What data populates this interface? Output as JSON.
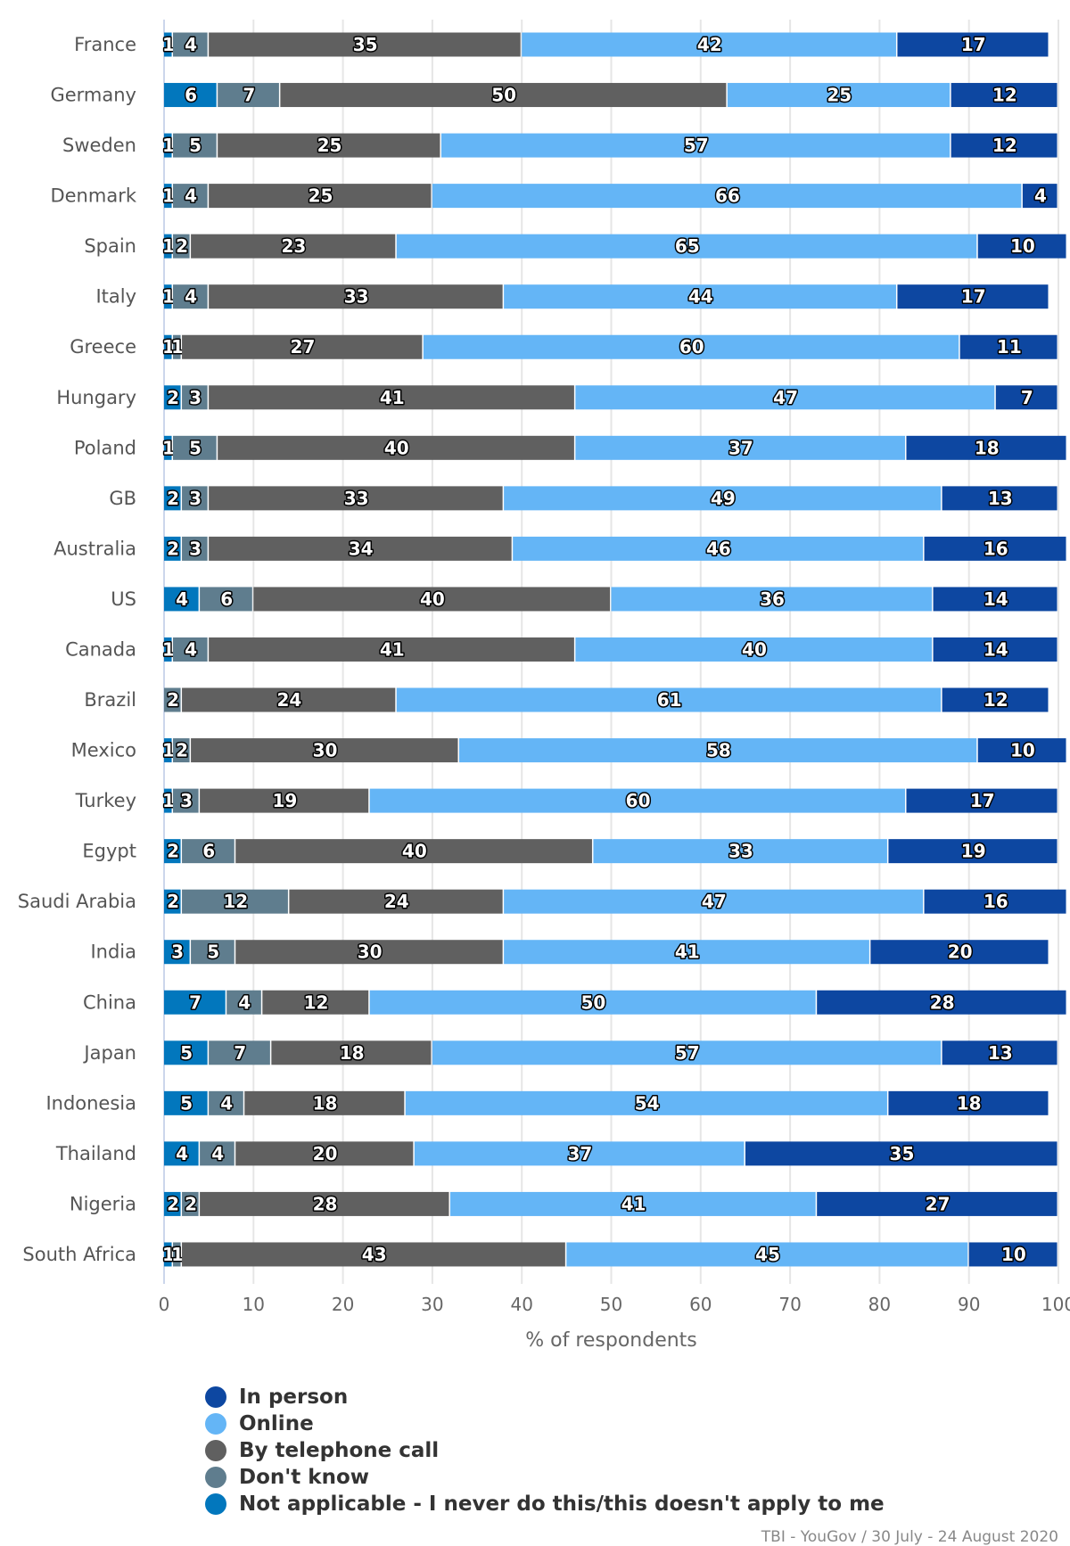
{
  "chart_data": {
    "type": "bar",
    "orientation": "horizontal",
    "stacked": "percent",
    "categories": [
      "France",
      "Germany",
      "Sweden",
      "Denmark",
      "Spain",
      "Italy",
      "Greece",
      "Hungary",
      "Poland",
      "GB",
      "Australia",
      "US",
      "Canada",
      "Brazil",
      "Mexico",
      "Turkey",
      "Egypt",
      "Saudi Arabia",
      "India",
      "China",
      "Japan",
      "Indonesia",
      "Thailand",
      "Nigeria",
      "South Africa"
    ],
    "series": [
      {
        "name": "Not applicable - I never do this/this doesn't apply to me",
        "color": "#0277bd",
        "values": [
          1,
          6,
          1,
          1,
          1,
          1,
          1,
          2,
          1,
          2,
          2,
          4,
          1,
          0,
          1,
          1,
          2,
          2,
          3,
          7,
          5,
          5,
          4,
          2,
          1
        ]
      },
      {
        "name": "Don't know",
        "color": "#5f7d8e",
        "values": [
          4,
          7,
          5,
          4,
          2,
          4,
          1,
          3,
          5,
          3,
          3,
          6,
          4,
          2,
          2,
          3,
          6,
          12,
          5,
          4,
          7,
          4,
          4,
          2,
          1
        ]
      },
      {
        "name": "By telephone call",
        "color": "#606060",
        "values": [
          35,
          50,
          25,
          25,
          23,
          33,
          27,
          41,
          40,
          33,
          34,
          40,
          41,
          24,
          30,
          19,
          40,
          24,
          30,
          12,
          18,
          18,
          20,
          28,
          43
        ]
      },
      {
        "name": "Online",
        "color": "#64b5f6",
        "values": [
          42,
          25,
          57,
          66,
          65,
          44,
          60,
          47,
          37,
          49,
          46,
          36,
          40,
          61,
          58,
          60,
          33,
          47,
          41,
          50,
          57,
          54,
          37,
          41,
          45
        ]
      },
      {
        "name": "In person",
        "color": "#0d47a1",
        "values": [
          17,
          12,
          12,
          4,
          10,
          17,
          11,
          7,
          18,
          13,
          16,
          14,
          14,
          12,
          10,
          17,
          19,
          16,
          20,
          28,
          13,
          18,
          35,
          27,
          10
        ]
      }
    ],
    "legend_order": [
      "In person",
      "Online",
      "By telephone call",
      "Don't know",
      "Not applicable - I never do this/this doesn't apply to me"
    ],
    "xlabel": "% of respondents",
    "xlim": [
      0,
      100
    ],
    "xticks": [
      "0",
      "10",
      "20",
      "30",
      "40",
      "50",
      "60",
      "70",
      "80",
      "90",
      "100"
    ],
    "grid": true,
    "legend_placement": "bottom-left",
    "source": "TBI - YouGov / 30 July - 24 August 2020"
  }
}
